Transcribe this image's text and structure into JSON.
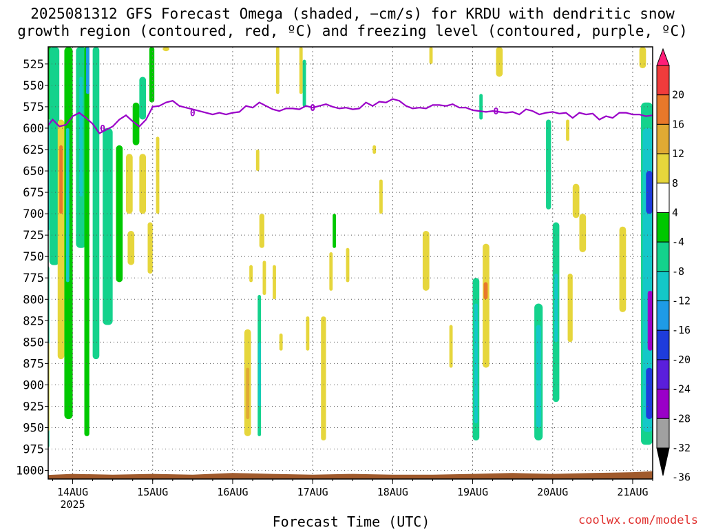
{
  "title_line1": "2025081312 GFS Forecast Omega (shaded, −cm/s) for KRDU with dendritic snow",
  "title_line2": "growth region (contoured, red, ºC) and freezing level (contoured, purple, ºC)",
  "credit": "coolwx.com/models",
  "chart_data": {
    "type": "heatmap",
    "title": "2025081312 GFS Forecast Omega (shaded, −cm/s) for KRDU with dendritic snow growth region (contoured, red, ºC) and freezing level (contoured, purple, ºC)",
    "xlabel": "Forecast Time (UTC)",
    "ylabel": "",
    "x_tick_labels": [
      "14AUG",
      "15AUG",
      "16AUG",
      "17AUG",
      "18AUG",
      "19AUG",
      "20AUG",
      "21AUG"
    ],
    "x_year_label": "2025",
    "xlim_hours": [
      0,
      186
    ],
    "y_tick_labels": [
      525,
      550,
      575,
      600,
      625,
      650,
      675,
      700,
      725,
      750,
      775,
      800,
      825,
      850,
      875,
      900,
      925,
      950,
      975,
      1000
    ],
    "ylim": [
      1010,
      505
    ],
    "grid": true,
    "colorbar": {
      "labels": [
        20,
        16,
        12,
        8,
        4,
        -4,
        -8,
        -12,
        -16,
        -20,
        -24,
        -28,
        -32,
        -36
      ],
      "colors": [
        "#ff1e78",
        "#f03c3c",
        "#e8782a",
        "#e0aa33",
        "#e6d63c",
        "#ffffff",
        "#00c800",
        "#14d28c",
        "#14c8c8",
        "#1e9be6",
        "#1e3cdc",
        "#5a1edc",
        "#9a00c8",
        "#a0a0a0",
        "#000000"
      ]
    },
    "freezing_level": {
      "label": "0",
      "color": "#9a00c8",
      "points": [
        [
          0,
          605
        ],
        [
          2,
          598
        ],
        [
          4,
          600
        ],
        [
          6,
          590
        ],
        [
          8,
          598
        ],
        [
          10,
          596
        ],
        [
          12,
          586
        ],
        [
          14,
          582
        ],
        [
          16,
          588
        ],
        [
          18,
          595
        ],
        [
          20,
          606
        ],
        [
          22,
          602
        ],
        [
          24,
          598
        ],
        [
          26,
          590
        ],
        [
          28,
          585
        ],
        [
          30,
          592
        ],
        [
          32,
          598
        ],
        [
          34,
          590
        ],
        [
          36,
          575
        ],
        [
          38,
          574
        ],
        [
          40,
          570
        ],
        [
          42,
          568
        ],
        [
          44,
          574
        ],
        [
          46,
          576
        ],
        [
          48,
          578
        ],
        [
          50,
          580
        ],
        [
          52,
          582
        ],
        [
          54,
          584
        ],
        [
          56,
          582
        ],
        [
          58,
          584
        ],
        [
          60,
          582
        ],
        [
          62,
          581
        ],
        [
          64,
          574
        ],
        [
          66,
          576
        ],
        [
          68,
          570
        ],
        [
          70,
          574
        ],
        [
          72,
          578
        ],
        [
          74,
          580
        ],
        [
          76,
          577
        ],
        [
          78,
          577
        ],
        [
          80,
          578
        ],
        [
          82,
          574
        ],
        [
          84,
          576
        ],
        [
          86,
          574
        ],
        [
          88,
          572
        ],
        [
          90,
          575
        ],
        [
          92,
          577
        ],
        [
          94,
          576
        ],
        [
          96,
          578
        ],
        [
          98,
          577
        ],
        [
          100,
          570
        ],
        [
          102,
          574
        ],
        [
          104,
          569
        ],
        [
          106,
          570
        ],
        [
          108,
          566
        ],
        [
          110,
          568
        ],
        [
          112,
          574
        ],
        [
          114,
          577
        ],
        [
          116,
          576
        ],
        [
          118,
          577
        ],
        [
          120,
          573
        ],
        [
          122,
          573
        ],
        [
          124,
          574
        ],
        [
          126,
          572
        ],
        [
          128,
          576
        ],
        [
          130,
          576
        ],
        [
          132,
          579
        ],
        [
          134,
          580
        ],
        [
          136,
          581
        ],
        [
          138,
          580
        ],
        [
          140,
          581
        ],
        [
          142,
          582
        ],
        [
          144,
          581
        ],
        [
          146,
          584
        ],
        [
          148,
          578
        ],
        [
          150,
          580
        ],
        [
          152,
          584
        ],
        [
          154,
          582
        ],
        [
          156,
          581
        ],
        [
          158,
          583
        ],
        [
          160,
          582
        ],
        [
          162,
          588
        ],
        [
          164,
          582
        ],
        [
          166,
          584
        ],
        [
          168,
          583
        ],
        [
          170,
          590
        ],
        [
          172,
          586
        ],
        [
          174,
          588
        ],
        [
          176,
          582
        ],
        [
          178,
          582
        ],
        [
          180,
          584
        ],
        [
          182,
          584
        ],
        [
          184,
          586
        ],
        [
          186,
          585
        ]
      ]
    },
    "terrain": {
      "color": "#a05a2c",
      "points": [
        [
          0,
          1006
        ],
        [
          12,
          1004
        ],
        [
          24,
          1005
        ],
        [
          36,
          1004
        ],
        [
          48,
          1005
        ],
        [
          60,
          1003
        ],
        [
          72,
          1004
        ],
        [
          84,
          1005
        ],
        [
          96,
          1004
        ],
        [
          108,
          1005
        ],
        [
          120,
          1005
        ],
        [
          132,
          1004
        ],
        [
          144,
          1003
        ],
        [
          156,
          1004
        ],
        [
          168,
          1003
        ],
        [
          180,
          1002
        ],
        [
          186,
          1001
        ]
      ]
    },
    "omega_regions": [
      {
        "t": [
          3,
          6
        ],
        "p": [
          505,
          590
        ],
        "v": -6
      },
      {
        "t": [
          4,
          5
        ],
        "p": [
          590,
          720
        ],
        "v": -14
      },
      {
        "t": [
          3.5,
          4.5
        ],
        "p": [
          620,
          700
        ],
        "v": -22
      },
      {
        "t": [
          1,
          2
        ],
        "p": [
          715,
          780
        ],
        "v": 4
      },
      {
        "t": [
          3,
          5
        ],
        "p": [
          760,
          975
        ],
        "v": -8
      },
      {
        "t": [
          3.5,
          5
        ],
        "p": [
          850,
          955
        ],
        "v": 5
      },
      {
        "t": [
          3.7,
          4.4
        ],
        "p": [
          880,
          940
        ],
        "v": 12
      },
      {
        "t": [
          5,
          8
        ],
        "p": [
          505,
          760
        ],
        "v": -10
      },
      {
        "t": [
          7.5,
          9.5
        ],
        "p": [
          590,
          870
        ],
        "v": 5
      },
      {
        "t": [
          8,
          9
        ],
        "p": [
          620,
          700
        ],
        "v": 12
      },
      {
        "t": [
          9.5,
          12
        ],
        "p": [
          505,
          940
        ],
        "v": -7
      },
      {
        "t": [
          10,
          11
        ],
        "p": [
          600,
          780
        ],
        "v": -12
      },
      {
        "t": [
          13,
          16
        ],
        "p": [
          505,
          740
        ],
        "v": -8
      },
      {
        "t": [
          14,
          15
        ],
        "p": [
          540,
          680
        ],
        "v": -14
      },
      {
        "t": [
          15.5,
          17
        ],
        "p": [
          505,
          960
        ],
        "v": -6
      },
      {
        "t": [
          16,
          17
        ],
        "p": [
          505,
          560
        ],
        "v": -18
      },
      {
        "t": [
          18,
          20
        ],
        "p": [
          505,
          870
        ],
        "v": -8
      },
      {
        "t": [
          21,
          24
        ],
        "p": [
          600,
          830
        ],
        "v": -8
      },
      {
        "t": [
          25,
          27
        ],
        "p": [
          620,
          780
        ],
        "v": -7
      },
      {
        "t": [
          28,
          30
        ],
        "p": [
          630,
          700
        ],
        "v": 5
      },
      {
        "t": [
          28.5,
          30.5
        ],
        "p": [
          720,
          760
        ],
        "v": 5
      },
      {
        "t": [
          30,
          32
        ],
        "p": [
          570,
          620
        ],
        "v": -6
      },
      {
        "t": [
          32,
          34
        ],
        "p": [
          630,
          700
        ],
        "v": 5
      },
      {
        "t": [
          35,
          36.5
        ],
        "p": [
          505,
          570
        ],
        "v": -6
      },
      {
        "t": [
          37,
          38
        ],
        "p": [
          610,
          700
        ],
        "v": 5
      },
      {
        "t": [
          32,
          34
        ],
        "p": [
          540,
          590
        ],
        "v": -8
      },
      {
        "t": [
          34.5,
          36
        ],
        "p": [
          710,
          770
        ],
        "v": 5
      },
      {
        "t": [
          39,
          41
        ],
        "p": [
          505,
          510
        ],
        "v": 5
      },
      {
        "t": [
          63.5,
          65.5
        ],
        "p": [
          835,
          960
        ],
        "v": 5
      },
      {
        "t": [
          64,
          65
        ],
        "p": [
          880,
          940
        ],
        "v": 9
      },
      {
        "t": [
          65,
          66
        ],
        "p": [
          760,
          780
        ],
        "v": 5
      },
      {
        "t": [
          67.5,
          68.5
        ],
        "p": [
          795,
          960
        ],
        "v": -8
      },
      {
        "t": [
          67.7,
          68.4
        ],
        "p": [
          850,
          925
        ],
        "v": -12
      },
      {
        "t": [
          67,
          68
        ],
        "p": [
          625,
          650
        ],
        "v": 5
      },
      {
        "t": [
          68,
          69.5
        ],
        "p": [
          700,
          740
        ],
        "v": 5
      },
      {
        "t": [
          69,
          70
        ],
        "p": [
          755,
          795
        ],
        "v": 5
      },
      {
        "t": [
          72,
          73
        ],
        "p": [
          760,
          800
        ],
        "v": 5
      },
      {
        "t": [
          73,
          74
        ],
        "p": [
          505,
          560
        ],
        "v": 5
      },
      {
        "t": [
          74,
          75
        ],
        "p": [
          840,
          860
        ],
        "v": 5
      },
      {
        "t": [
          80,
          81
        ],
        "p": [
          505,
          560
        ],
        "v": 5
      },
      {
        "t": [
          81,
          82
        ],
        "p": [
          520,
          575
        ],
        "v": -8
      },
      {
        "t": [
          82,
          83
        ],
        "p": [
          820,
          860
        ],
        "v": 5
      },
      {
        "t": [
          86.5,
          88
        ],
        "p": [
          820,
          965
        ],
        "v": 5
      },
      {
        "t": [
          89,
          90
        ],
        "p": [
          745,
          790
        ],
        "v": 5
      },
      {
        "t": [
          90,
          91
        ],
        "p": [
          700,
          740
        ],
        "v": -7
      },
      {
        "t": [
          94,
          95
        ],
        "p": [
          740,
          780
        ],
        "v": 5
      },
      {
        "t": [
          102,
          103
        ],
        "p": [
          620,
          630
        ],
        "v": 5
      },
      {
        "t": [
          104,
          105
        ],
        "p": [
          660,
          700
        ],
        "v": 5
      },
      {
        "t": [
          117,
          119
        ],
        "p": [
          720,
          790
        ],
        "v": 5
      },
      {
        "t": [
          119,
          120
        ],
        "p": [
          505,
          525
        ],
        "v": 5
      },
      {
        "t": [
          125,
          126
        ],
        "p": [
          830,
          880
        ],
        "v": 5
      },
      {
        "t": [
          132,
          134
        ],
        "p": [
          775,
          965
        ],
        "v": -8
      },
      {
        "t": [
          132.5,
          133.5
        ],
        "p": [
          805,
          945
        ],
        "v": -14
      },
      {
        "t": [
          134,
          135
        ],
        "p": [
          560,
          590
        ],
        "v": -8
      },
      {
        "t": [
          135,
          137
        ],
        "p": [
          735,
          880
        ],
        "v": 5
      },
      {
        "t": [
          135.3,
          136.5
        ],
        "p": [
          780,
          800
        ],
        "v": 12
      },
      {
        "t": [
          139,
          141
        ],
        "p": [
          505,
          540
        ],
        "v": 5
      },
      {
        "t": [
          150.5,
          153
        ],
        "p": [
          805,
          965
        ],
        "v": -8
      },
      {
        "t": [
          151,
          152.5
        ],
        "p": [
          830,
          950
        ],
        "v": -14
      },
      {
        "t": [
          154,
          155.5
        ],
        "p": [
          590,
          695
        ],
        "v": -8
      },
      {
        "t": [
          156,
          158
        ],
        "p": [
          710,
          920
        ],
        "v": -8
      },
      {
        "t": [
          156.5,
          157.5
        ],
        "p": [
          770,
          850
        ],
        "v": -14
      },
      {
        "t": [
          160,
          161
        ],
        "p": [
          590,
          615
        ],
        "v": 5
      },
      {
        "t": [
          160.5,
          162
        ],
        "p": [
          770,
          850
        ],
        "v": 5
      },
      {
        "t": [
          162,
          164
        ],
        "p": [
          665,
          705
        ],
        "v": 5
      },
      {
        "t": [
          164,
          166
        ],
        "p": [
          700,
          745
        ],
        "v": 5
      },
      {
        "t": [
          176,
          178
        ],
        "p": [
          715,
          815
        ],
        "v": 5
      },
      {
        "t": [
          182,
          184
        ],
        "p": [
          505,
          530
        ],
        "v": 5
      },
      {
        "t": [
          182.5,
          186
        ],
        "p": [
          570,
          970
        ],
        "v": -8
      },
      {
        "t": [
          183,
          186
        ],
        "p": [
          600,
          955
        ],
        "v": -14
      },
      {
        "t": [
          184,
          186
        ],
        "p": [
          650,
          700
        ],
        "v": -22
      },
      {
        "t": [
          184.5,
          186
        ],
        "p": [
          790,
          860
        ],
        "v": -30
      },
      {
        "t": [
          184,
          186
        ],
        "p": [
          880,
          940
        ],
        "v": -22
      }
    ]
  }
}
